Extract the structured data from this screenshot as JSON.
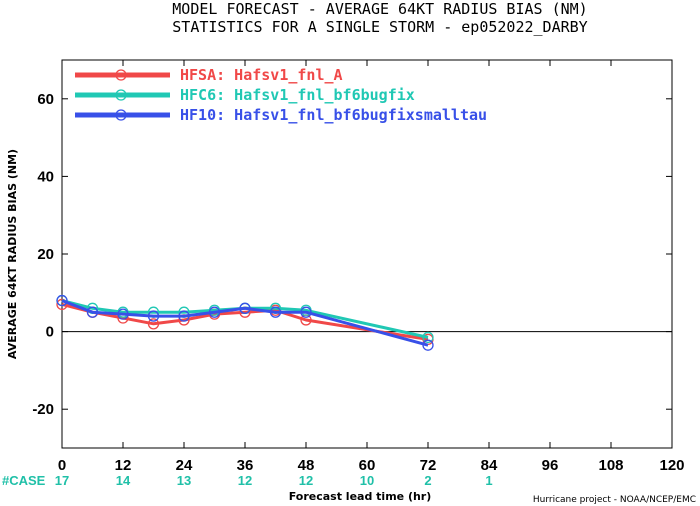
{
  "title_line1": "MODEL FORECAST - AVERAGE 64KT RADIUS BIAS (NM)",
  "title_line2": "STATISTICS FOR A SINGLE STORM - ep052022_DARBY",
  "credit": "Hurricane project - NOAA/NCEP/EMC",
  "case_prefix": "#CASE",
  "colors": {
    "case_text": "#20c0a8"
  },
  "chart_data": {
    "type": "line",
    "xlabel": "Forecast lead time (hr)",
    "ylabel": "AVERAGE 64KT RADIUS BIAS (NM)",
    "xlim": [
      0,
      120
    ],
    "ylim": [
      -30,
      70
    ],
    "x_ticks": [
      0,
      12,
      24,
      36,
      48,
      60,
      72,
      84,
      96,
      108,
      120
    ],
    "x_tick_labels": [
      "0",
      "12",
      "24",
      "36",
      "48",
      "60",
      "72",
      "84",
      "96",
      "108",
      "120"
    ],
    "y_ticks": [
      -20,
      0,
      20,
      40,
      60
    ],
    "y_tick_labels": [
      "-20",
      "0",
      "20",
      "40",
      "60"
    ],
    "zero_line": true,
    "grid": false,
    "legend_position": "top-left",
    "case_counts": [
      {
        "x": 0,
        "n": "17"
      },
      {
        "x": 12,
        "n": "14"
      },
      {
        "x": 24,
        "n": "13"
      },
      {
        "x": 36,
        "n": "12"
      },
      {
        "x": 48,
        "n": "12"
      },
      {
        "x": 60,
        "n": "10"
      },
      {
        "x": 72,
        "n": "2"
      },
      {
        "x": 84,
        "n": "1"
      }
    ],
    "series": [
      {
        "name": "HFSA: Hafsv1_fnl_A",
        "color": "#f04848",
        "x": [
          0,
          6,
          12,
          18,
          24,
          30,
          36,
          42,
          48,
          72
        ],
        "values": [
          7,
          5,
          3.5,
          2,
          3,
          4.5,
          5,
          5.5,
          3,
          -2
        ]
      },
      {
        "name": "HFC6: Hafsv1_fnl_bf6bugfix",
        "color": "#20c8b4",
        "x": [
          0,
          6,
          12,
          18,
          24,
          30,
          36,
          42,
          48,
          72
        ],
        "values": [
          8,
          6,
          5,
          5,
          5,
          5.5,
          6,
          6,
          5.5,
          -1.5
        ]
      },
      {
        "name": "HF10: Hafsv1_fnl_bf6bugfixsmalltau",
        "color": "#3850e8",
        "x": [
          0,
          6,
          12,
          18,
          24,
          30,
          36,
          42,
          48,
          72
        ],
        "values": [
          8,
          5,
          4.5,
          4,
          4,
          5,
          6,
          5,
          5,
          -3.5
        ]
      }
    ]
  }
}
